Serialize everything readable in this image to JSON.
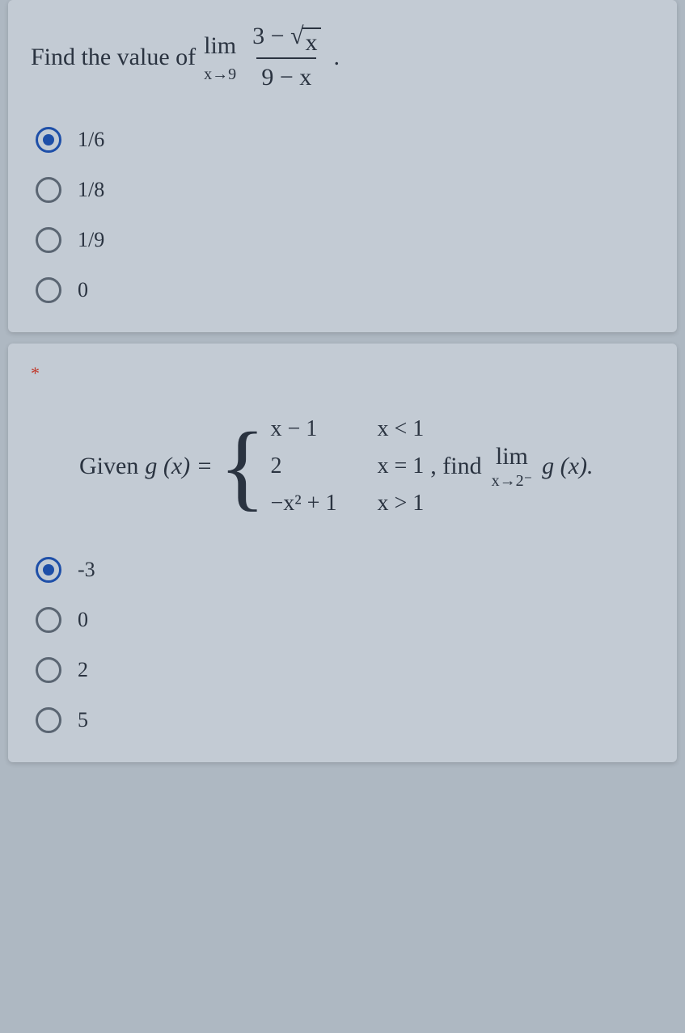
{
  "colors": {
    "page_bg": "#aeb8c2",
    "card_bg": "#c3cbd4",
    "text": "#2a3340",
    "accent": "#1e4fa8",
    "radio_border": "#5a6572",
    "required": "#c0392b"
  },
  "typography": {
    "family": "Georgia, 'Times New Roman', serif",
    "question_fontsize": 30,
    "option_fontsize": 26,
    "subscript_fontsize": 20
  },
  "question1": {
    "prompt_prefix": "Find the value of ",
    "lim_label": "lim",
    "lim_sub": "x→9",
    "frac_num_a": "3 − ",
    "sqrt_arg": "x",
    "frac_den": "9 − x",
    "period": ".",
    "options": [
      {
        "label": "1/6",
        "selected": true
      },
      {
        "label": "1/8",
        "selected": false
      },
      {
        "label": "1/9",
        "selected": false
      },
      {
        "label": "0",
        "selected": false
      }
    ]
  },
  "question2": {
    "required_marker": "*",
    "given": "Given ",
    "gx_eq": "g (x) = ",
    "cases": {
      "r1_expr": "x − 1",
      "r1_cond": "x < 1",
      "r2_expr": "2",
      "r2_cond": "x = 1",
      "r3_expr": "−x² + 1",
      "r3_cond": "x > 1"
    },
    "find_prefix": ", find ",
    "lim_label": "lim",
    "lim_sub": "x→2⁻",
    "gx": " g (x).",
    "options": [
      {
        "label": "-3",
        "selected": true
      },
      {
        "label": "0",
        "selected": false
      },
      {
        "label": "2",
        "selected": false
      },
      {
        "label": "5",
        "selected": false
      }
    ]
  }
}
